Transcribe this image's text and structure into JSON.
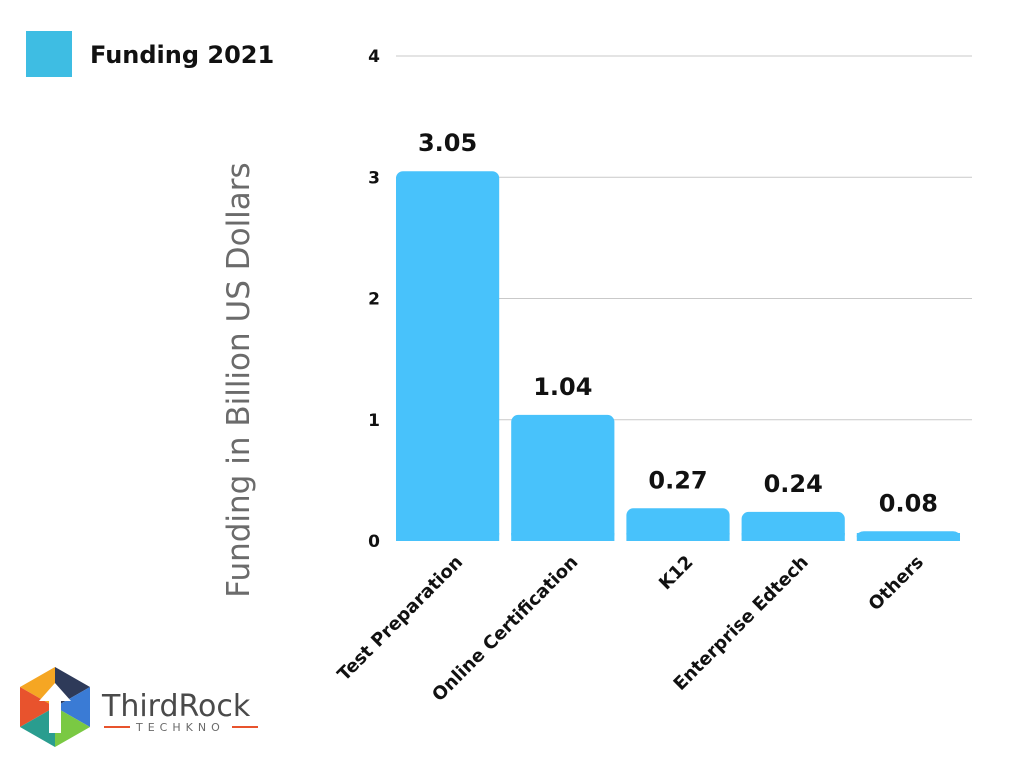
{
  "chart_data": {
    "type": "bar",
    "categories": [
      "Test Preparation",
      "Online Certification",
      "K12",
      "Enterprise Edtech",
      "Others"
    ],
    "series": [
      {
        "name": "Funding 2021",
        "values": [
          3.05,
          1.04,
          0.27,
          0.24,
          0.08
        ]
      }
    ],
    "data_labels": [
      "3.05",
      "1.04",
      "0.27",
      "0.24",
      "0.08"
    ],
    "ylabel": "Funding in Billion US Dollars",
    "xlabel": "",
    "ylim": [
      0,
      4
    ],
    "yticks": [
      0,
      1,
      2,
      3,
      4
    ],
    "grid": true,
    "legend": "top-left",
    "bar_color": "#48c2fb",
    "legend_swatch_color": "#3ebde3"
  },
  "logo": {
    "name": "ThirdRock",
    "sub": "TECHKNO",
    "colors": [
      "#f5a623",
      "#e8532d",
      "#2e3a59",
      "#2a9d8f",
      "#3a7bd5",
      "#7ac943"
    ]
  }
}
